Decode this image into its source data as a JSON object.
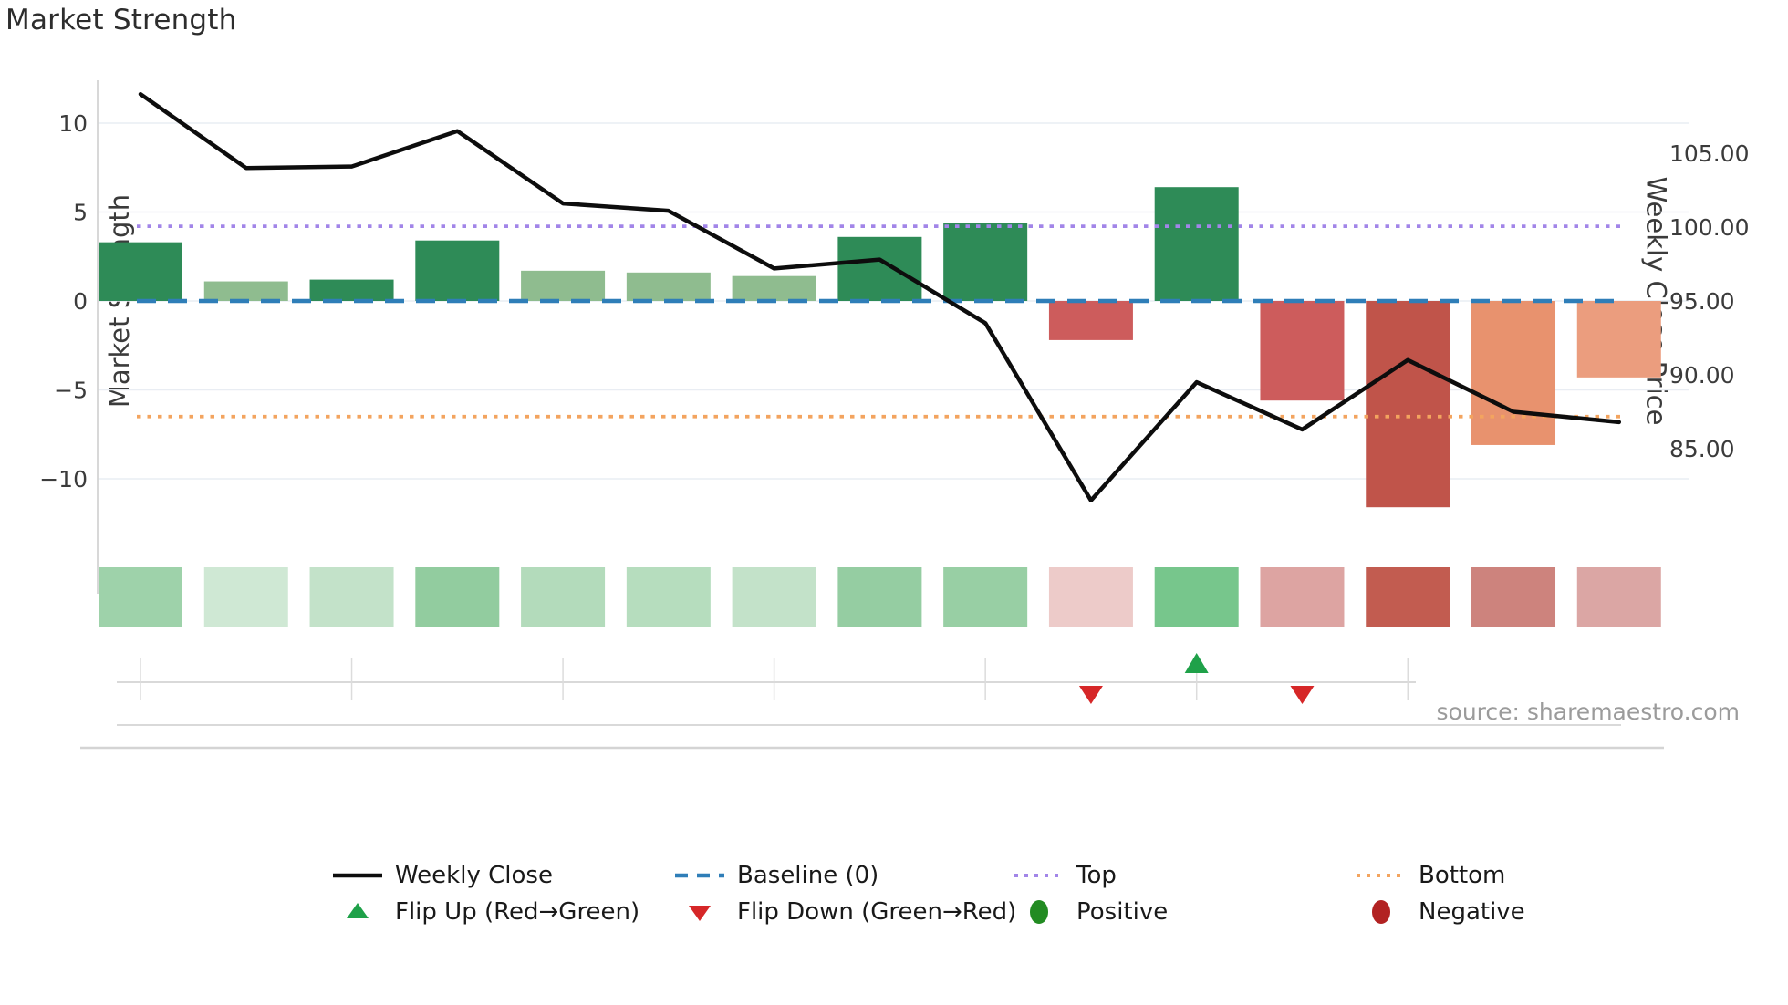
{
  "chart_data": {
    "type": "combo-bar-line",
    "title": "Market Strength",
    "source": "source: sharemaestro.com",
    "axes": {
      "left": {
        "label": "Market Strength",
        "ticks": [
          {
            "v": 10,
            "t": "10"
          },
          {
            "v": 5,
            "t": "5"
          },
          {
            "v": 0,
            "t": "0"
          },
          {
            "v": -5,
            "t": "−5"
          },
          {
            "v": -10,
            "t": "−10"
          }
        ]
      },
      "right": {
        "label": "Weekly Close Price",
        "ticks": [
          {
            "p": 105,
            "t": "105.00"
          },
          {
            "p": 100,
            "t": "100.00"
          },
          {
            "p": 95,
            "t": "95.00"
          },
          {
            "p": 90,
            "t": "90.00"
          },
          {
            "p": 85,
            "t": "85.00"
          }
        ]
      },
      "x_tick_positions_every_other_bar": [
        1,
        3,
        5,
        7,
        9,
        11,
        13
      ]
    },
    "strength_bars": {
      "name": "Market Strength",
      "values": [
        3.3,
        1.1,
        1.2,
        3.4,
        1.7,
        1.6,
        1.4,
        3.6,
        4.4,
        -2.2,
        6.4,
        -5.6,
        -11.6,
        -8.1,
        -4.3
      ],
      "colors": [
        "#2e8b57",
        "#8fbc8f",
        "#2e8b57",
        "#2e8b57",
        "#8fbc8f",
        "#8fbc8f",
        "#8fbc8f",
        "#2e8b57",
        "#2e8b57",
        "#cd5c5c",
        "#2e8b57",
        "#cd5c5c",
        "#c0544a",
        "#e8926e",
        "#eb9d7e"
      ]
    },
    "weekly_close": {
      "name": "Weekly Close",
      "prices": [
        109.0,
        104.0,
        104.1,
        106.5,
        101.6,
        101.1,
        97.2,
        97.8,
        93.5,
        81.5,
        89.5,
        86.3,
        91.0,
        87.5,
        86.8
      ],
      "color": "#0d0d0d"
    },
    "reference_lines": {
      "baseline": {
        "name": "Baseline (0)",
        "value": 0,
        "color": "#2f7eb8",
        "style": "dashed"
      },
      "top": {
        "name": "Top",
        "value": 4.2,
        "color": "#a285e8",
        "style": "dotted"
      },
      "bottom": {
        "name": "Bottom",
        "value": -6.5,
        "color": "#f3a45f",
        "style": "dotted"
      }
    },
    "heatmap_strip": {
      "colors": [
        "#9ed2aa",
        "#cfe8d4",
        "#c3e2c9",
        "#92cc9f",
        "#b3dbbb",
        "#b6ddbe",
        "#c3e2c9",
        "#95cda2",
        "#98cfa4",
        "#edcbc9",
        "#77c68c",
        "#dda4a2",
        "#c25c50",
        "#cd837d",
        "#dba6a4"
      ]
    },
    "flip_markers": {
      "flip_up": {
        "name": "Flip Up (Red→Green)",
        "at_bars": [
          11
        ],
        "color": "#1fa149"
      },
      "flip_down": {
        "name": "Flip Down (Green→Red)",
        "at_bars": [
          10,
          12
        ],
        "color": "#d62728"
      }
    },
    "legend": {
      "rows": [
        [
          {
            "label": "Weekly Close",
            "swatch": "line",
            "color": "#0d0d0d"
          },
          {
            "label": "Baseline (0)",
            "swatch": "dash",
            "color": "#2f7eb8"
          },
          {
            "label": "Top",
            "swatch": "dot",
            "color": "#a285e8"
          },
          {
            "label": "Bottom",
            "swatch": "dot",
            "color": "#f3a45f"
          }
        ],
        [
          {
            "label": "Flip Up (Red→Green)",
            "swatch": "tri-up",
            "color": "#1fa149"
          },
          {
            "label": "Flip Down (Green→Red)",
            "swatch": "tri-down",
            "color": "#d62728"
          },
          {
            "label": "Positive",
            "swatch": "circle",
            "color": "#228b22"
          },
          {
            "label": "Negative",
            "swatch": "circle",
            "color": "#b22222"
          }
        ]
      ]
    }
  }
}
